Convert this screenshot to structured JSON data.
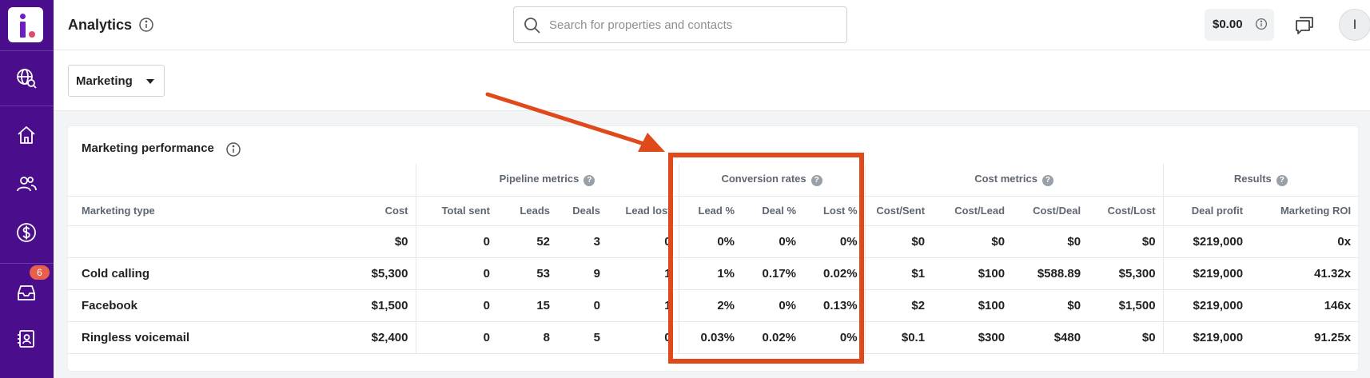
{
  "header": {
    "title": "Analytics",
    "search_placeholder": "Search for properties and contacts",
    "search_value": "",
    "balance": "$0.00",
    "avatar_initial": "I"
  },
  "sidebar": {
    "items": [
      {
        "icon": "globe-search-icon"
      },
      {
        "icon": "home-icon"
      },
      {
        "icon": "users-icon"
      },
      {
        "icon": "dollar-icon"
      },
      {
        "icon": "inbox-icon",
        "badge": "6"
      },
      {
        "icon": "contacts-book-icon"
      }
    ]
  },
  "filter": {
    "selected": "Marketing"
  },
  "card": {
    "title": "Marketing performance",
    "groups": [
      "Pipeline metrics",
      "Conversion rates",
      "Cost metrics",
      "Results"
    ],
    "columns": [
      "Marketing type",
      "Cost",
      "Total sent",
      "Leads",
      "Deals",
      "Lead lost",
      "Lead %",
      "Deal %",
      "Lost %",
      "Cost/Sent",
      "Cost/Lead",
      "Cost/Deal",
      "Cost/Lost",
      "Deal profit",
      "Marketing ROI"
    ],
    "rows": [
      [
        "",
        "$0",
        "0",
        "52",
        "3",
        "0",
        "0%",
        "0%",
        "0%",
        "$0",
        "$0",
        "$0",
        "$0",
        "$219,000",
        "0x"
      ],
      [
        "Cold calling",
        "$5,300",
        "0",
        "53",
        "9",
        "1",
        "1%",
        "0.17%",
        "0.02%",
        "$1",
        "$100",
        "$588.89",
        "$5,300",
        "$219,000",
        "41.32x"
      ],
      [
        "Facebook",
        "$1,500",
        "0",
        "15",
        "0",
        "1",
        "2%",
        "0%",
        "0.13%",
        "$2",
        "$100",
        "$0",
        "$1,500",
        "$219,000",
        "146x"
      ],
      [
        "Ringless voicemail",
        "$2,400",
        "0",
        "8",
        "5",
        "0",
        "0.03%",
        "0.02%",
        "0%",
        "$0.1",
        "$300",
        "$480",
        "$0",
        "$219,000",
        "91.25x"
      ]
    ]
  },
  "annotation": {
    "color": "#e04a1b"
  }
}
